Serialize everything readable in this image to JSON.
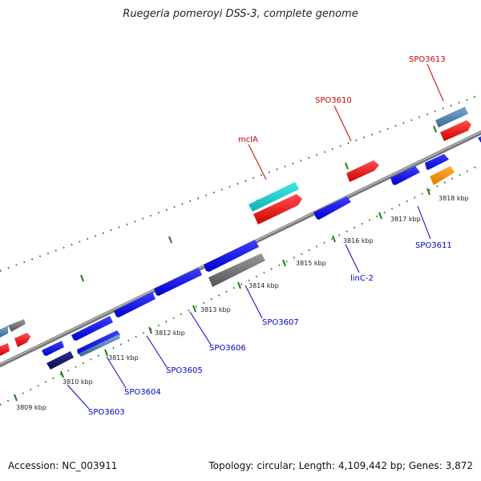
{
  "title": "Ruegeria pomeroyi DSS-3, complete genome",
  "footer": {
    "accession": "Accession: NC_003911",
    "summary": "Topology: circular; Length: 4,109,442 bp; Genes: 3,872"
  },
  "colors": {
    "backbone": "#808080",
    "tick_mark": "#1a7a1a",
    "label_forward": "#cc0000",
    "label_reverse": "#0000cc"
  },
  "ticks": [
    {
      "label": "3809 kbp"
    },
    {
      "label": "3810 kbp"
    },
    {
      "label": "3811 kbp"
    },
    {
      "label": "3812 kbp"
    },
    {
      "label": "3813 kbp"
    },
    {
      "label": "3814 kbp"
    },
    {
      "label": "3815 kbp"
    },
    {
      "label": "3816 kbp"
    },
    {
      "label": "3817 kbp"
    },
    {
      "label": "3818 kbp"
    }
  ],
  "gene_labels": [
    {
      "text": "SPO3613",
      "strand": "forward"
    },
    {
      "text": "SPO3610",
      "strand": "forward"
    },
    {
      "text": "mclA",
      "strand": "forward"
    },
    {
      "text": "SPO3611",
      "strand": "reverse"
    },
    {
      "text": "linC-2",
      "strand": "reverse"
    },
    {
      "text": "SPO3607",
      "strand": "reverse"
    },
    {
      "text": "SPO3606",
      "strand": "reverse"
    },
    {
      "text": "SPO3605",
      "strand": "reverse"
    },
    {
      "text": "SPO3604",
      "strand": "reverse"
    },
    {
      "text": "SPO3603",
      "strand": "reverse"
    }
  ]
}
